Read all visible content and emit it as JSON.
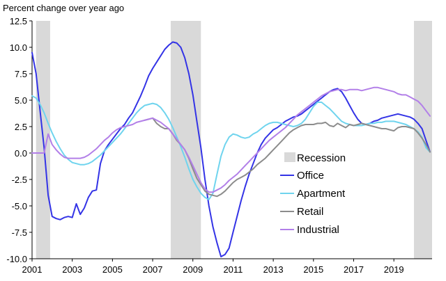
{
  "chart_data": {
    "type": "line",
    "ylabel": "Percent change over year ago",
    "ylim": [
      -10.0,
      12.5
    ],
    "yticks": [
      "12.5",
      "10.0",
      "7.5",
      "5.0",
      "2.5",
      "0.0",
      "-2.5",
      "-5.0",
      "-7.5",
      "-10.0"
    ],
    "xlim": [
      2001,
      2020.9
    ],
    "xticks": [
      "2001",
      "2003",
      "2005",
      "2007",
      "2009",
      "2011",
      "2013",
      "2015",
      "2017",
      "2019"
    ],
    "grid": false,
    "legend_position": "right",
    "recessions": [
      [
        2001.2,
        2001.9
      ],
      [
        2007.9,
        2009.4
      ],
      [
        2020.0,
        2020.9
      ]
    ],
    "recession_label": "Recession",
    "recession_color": "#d9d9d9",
    "series": [
      {
        "name": "Office",
        "color": "#3333e6",
        "x": [
          2001.0,
          2001.2,
          2001.4,
          2001.6,
          2001.8,
          2002.0,
          2002.2,
          2002.4,
          2002.6,
          2002.8,
          2003.0,
          2003.2,
          2003.4,
          2003.6,
          2003.8,
          2004.0,
          2004.2,
          2004.4,
          2004.6,
          2004.8,
          2005.0,
          2005.2,
          2005.4,
          2005.6,
          2005.8,
          2006.0,
          2006.2,
          2006.4,
          2006.6,
          2006.8,
          2007.0,
          2007.2,
          2007.4,
          2007.6,
          2007.8,
          2008.0,
          2008.2,
          2008.4,
          2008.6,
          2008.8,
          2009.0,
          2009.2,
          2009.4,
          2009.6,
          2009.8,
          2010.0,
          2010.2,
          2010.4,
          2010.6,
          2010.8,
          2011.0,
          2011.2,
          2011.4,
          2011.6,
          2011.8,
          2012.0,
          2012.2,
          2012.4,
          2012.6,
          2012.8,
          2013.0,
          2013.2,
          2013.4,
          2013.6,
          2013.8,
          2014.0,
          2014.2,
          2014.4,
          2014.6,
          2014.8,
          2015.0,
          2015.2,
          2015.4,
          2015.6,
          2015.8,
          2016.0,
          2016.2,
          2016.4,
          2016.6,
          2016.8,
          2017.0,
          2017.2,
          2017.4,
          2017.6,
          2017.8,
          2018.0,
          2018.2,
          2018.4,
          2018.6,
          2018.8,
          2019.0,
          2019.2,
          2019.4,
          2019.6,
          2019.8,
          2020.0,
          2020.2,
          2020.4,
          2020.6,
          2020.8
        ],
        "y": [
          9.5,
          7.5,
          4.0,
          0.5,
          -4.0,
          -6.0,
          -6.2,
          -6.3,
          -6.1,
          -6.0,
          -6.1,
          -4.8,
          -5.8,
          -5.2,
          -4.2,
          -3.6,
          -3.5,
          -1.0,
          0.2,
          0.8,
          1.3,
          1.8,
          2.3,
          2.7,
          3.3,
          3.8,
          4.6,
          5.4,
          6.3,
          7.3,
          8.0,
          8.6,
          9.2,
          9.8,
          10.2,
          10.5,
          10.4,
          10.0,
          9.0,
          7.5,
          5.5,
          3.0,
          0.5,
          -2.5,
          -5.0,
          -7.0,
          -8.5,
          -9.8,
          -9.6,
          -9.0,
          -7.5,
          -6.0,
          -4.5,
          -3.2,
          -2.0,
          -1.0,
          0.0,
          0.8,
          1.4,
          1.8,
          2.2,
          2.4,
          2.7,
          3.0,
          3.2,
          3.4,
          3.5,
          3.7,
          4.0,
          4.3,
          4.6,
          4.9,
          5.2,
          5.5,
          5.8,
          6.0,
          6.1,
          5.8,
          5.2,
          4.5,
          3.8,
          3.2,
          2.8,
          2.7,
          2.8,
          3.0,
          3.1,
          3.3,
          3.4,
          3.5,
          3.6,
          3.7,
          3.6,
          3.5,
          3.4,
          3.2,
          2.8,
          2.3,
          1.2,
          0.1
        ]
      },
      {
        "name": "Apartment",
        "color": "#6fd4ee",
        "x": [
          2001.0,
          2001.2,
          2001.4,
          2001.6,
          2001.8,
          2002.0,
          2002.2,
          2002.4,
          2002.6,
          2002.8,
          2003.0,
          2003.2,
          2003.4,
          2003.6,
          2003.8,
          2004.0,
          2004.2,
          2004.4,
          2004.6,
          2004.8,
          2005.0,
          2005.2,
          2005.4,
          2005.6,
          2005.8,
          2006.0,
          2006.2,
          2006.4,
          2006.6,
          2006.8,
          2007.0,
          2007.2,
          2007.4,
          2007.6,
          2007.8,
          2008.0,
          2008.2,
          2008.4,
          2008.6,
          2008.8,
          2009.0,
          2009.2,
          2009.4,
          2009.6,
          2009.8,
          2010.0,
          2010.2,
          2010.4,
          2010.6,
          2010.8,
          2011.0,
          2011.2,
          2011.4,
          2011.6,
          2011.8,
          2012.0,
          2012.2,
          2012.4,
          2012.6,
          2012.8,
          2013.0,
          2013.2,
          2013.4,
          2013.6,
          2013.8,
          2014.0,
          2014.2,
          2014.4,
          2014.6,
          2014.8,
          2015.0,
          2015.2,
          2015.4,
          2015.6,
          2015.8,
          2016.0,
          2016.2,
          2016.4,
          2016.6,
          2016.8,
          2017.0,
          2017.2,
          2017.4,
          2017.6,
          2017.8,
          2018.0,
          2018.2,
          2018.4,
          2018.6,
          2018.8,
          2019.0,
          2019.2,
          2019.4,
          2019.6,
          2019.8,
          2020.0,
          2020.2,
          2020.4,
          2020.6,
          2020.8
        ],
        "y": [
          5.4,
          5.2,
          4.6,
          3.8,
          2.8,
          1.9,
          1.1,
          0.4,
          -0.2,
          -0.6,
          -0.9,
          -1.0,
          -1.1,
          -1.1,
          -1.0,
          -0.8,
          -0.5,
          -0.2,
          0.2,
          0.6,
          1.0,
          1.4,
          1.8,
          2.3,
          2.8,
          3.3,
          3.8,
          4.2,
          4.5,
          4.6,
          4.7,
          4.6,
          4.3,
          3.8,
          3.2,
          2.4,
          1.5,
          0.6,
          -0.4,
          -1.5,
          -2.5,
          -3.2,
          -3.8,
          -4.2,
          -4.4,
          -3.8,
          -2.0,
          -0.3,
          0.8,
          1.5,
          1.8,
          1.7,
          1.5,
          1.4,
          1.5,
          1.8,
          2.0,
          2.3,
          2.6,
          2.8,
          2.9,
          2.9,
          2.8,
          2.7,
          2.6,
          2.5,
          2.6,
          2.8,
          3.2,
          3.8,
          4.4,
          4.8,
          4.8,
          4.5,
          4.2,
          3.8,
          3.4,
          3.0,
          2.8,
          2.7,
          2.6,
          2.6,
          2.6,
          2.7,
          2.8,
          2.8,
          2.9,
          2.9,
          3.0,
          3.0,
          3.0,
          2.9,
          2.8,
          2.7,
          2.5,
          2.3,
          2.0,
          1.5,
          0.5,
          0.1
        ]
      },
      {
        "name": "Retail",
        "color": "#8c8c8c",
        "x": [
          2006.6,
          2006.8,
          2007.0,
          2007.2,
          2007.4,
          2007.6,
          2007.8,
          2008.0,
          2008.2,
          2008.4,
          2008.6,
          2008.8,
          2009.0,
          2009.2,
          2009.4,
          2009.6,
          2009.8,
          2010.0,
          2010.2,
          2010.4,
          2010.6,
          2010.8,
          2011.0,
          2011.2,
          2011.4,
          2011.6,
          2011.8,
          2012.0,
          2012.2,
          2012.4,
          2012.6,
          2012.8,
          2013.0,
          2013.2,
          2013.4,
          2013.6,
          2013.8,
          2014.0,
          2014.2,
          2014.4,
          2014.6,
          2014.8,
          2015.0,
          2015.2,
          2015.4,
          2015.6,
          2015.8,
          2016.0,
          2016.2,
          2016.4,
          2016.6,
          2016.8,
          2017.0,
          2017.2,
          2017.4,
          2017.6,
          2017.8,
          2018.0,
          2018.2,
          2018.4,
          2018.6,
          2018.8,
          2019.0,
          2019.2,
          2019.4,
          2019.6,
          2019.8,
          2020.0,
          2020.2,
          2020.4,
          2020.6,
          2020.8
        ],
        "y": [
          3.1,
          3.2,
          3.3,
          2.8,
          2.5,
          2.3,
          2.3,
          1.8,
          1.2,
          0.8,
          0.3,
          -0.5,
          -1.5,
          -2.4,
          -3.0,
          -3.6,
          -3.9,
          -4.0,
          -4.1,
          -3.9,
          -3.6,
          -3.2,
          -2.8,
          -2.5,
          -2.3,
          -2.1,
          -1.8,
          -1.5,
          -1.1,
          -0.8,
          -0.5,
          -0.1,
          0.3,
          0.7,
          1.1,
          1.5,
          1.9,
          2.2,
          2.4,
          2.6,
          2.7,
          2.7,
          2.7,
          2.8,
          2.8,
          2.9,
          2.6,
          2.5,
          2.8,
          2.6,
          2.4,
          2.7,
          2.6,
          2.7,
          2.8,
          2.7,
          2.6,
          2.5,
          2.4,
          2.3,
          2.3,
          2.2,
          2.1,
          2.4,
          2.5,
          2.5,
          2.4,
          2.3,
          1.9,
          1.4,
          0.8,
          0.1
        ]
      },
      {
        "name": "Industrial",
        "color": "#b27fe8",
        "x": [
          2001.0,
          2001.2,
          2001.4,
          2001.6,
          2001.8,
          2002.0,
          2002.2,
          2002.4,
          2002.6,
          2002.8,
          2003.0,
          2003.2,
          2003.4,
          2003.6,
          2003.8,
          2004.0,
          2004.2,
          2004.4,
          2004.6,
          2004.8,
          2005.0,
          2005.2,
          2005.4,
          2005.6,
          2005.8,
          2006.0,
          2006.2,
          2006.4,
          2006.6,
          2006.8,
          2007.0,
          2007.2,
          2007.4,
          2007.6,
          2007.8,
          2008.0,
          2008.2,
          2008.4,
          2008.6,
          2008.8,
          2009.0,
          2009.2,
          2009.4,
          2009.6,
          2009.8,
          2010.0,
          2010.2,
          2010.4,
          2010.6,
          2010.8,
          2011.0,
          2011.2,
          2011.4,
          2011.6,
          2011.8,
          2012.0,
          2012.2,
          2012.4,
          2012.6,
          2012.8,
          2013.0,
          2013.2,
          2013.4,
          2013.6,
          2013.8,
          2014.0,
          2014.2,
          2014.4,
          2014.6,
          2014.8,
          2015.0,
          2015.2,
          2015.4,
          2015.6,
          2015.8,
          2016.0,
          2016.2,
          2016.4,
          2016.6,
          2016.8,
          2017.0,
          2017.2,
          2017.4,
          2017.6,
          2017.8,
          2018.0,
          2018.2,
          2018.4,
          2018.6,
          2018.8,
          2019.0,
          2019.2,
          2019.4,
          2019.6,
          2019.8,
          2020.0,
          2020.2,
          2020.4,
          2020.6,
          2020.8
        ],
        "y": [
          0.0,
          0.0,
          0.0,
          0.0,
          1.8,
          0.8,
          0.3,
          -0.1,
          -0.4,
          -0.5,
          -0.5,
          -0.5,
          -0.5,
          -0.4,
          -0.2,
          0.1,
          0.4,
          0.8,
          1.2,
          1.5,
          1.9,
          2.2,
          2.4,
          2.5,
          2.6,
          2.7,
          2.9,
          3.0,
          3.1,
          3.2,
          3.3,
          3.1,
          2.9,
          2.6,
          2.3,
          1.8,
          1.3,
          0.8,
          0.3,
          -0.4,
          -1.2,
          -2.0,
          -2.8,
          -3.4,
          -3.7,
          -3.7,
          -3.5,
          -3.3,
          -3.0,
          -2.6,
          -2.3,
          -2.0,
          -1.6,
          -1.2,
          -0.8,
          -0.4,
          0.0,
          0.4,
          0.8,
          1.2,
          1.5,
          1.8,
          2.1,
          2.4,
          2.8,
          3.2,
          3.6,
          3.9,
          4.2,
          4.5,
          4.8,
          5.1,
          5.4,
          5.6,
          5.8,
          5.9,
          6.0,
          6.0,
          5.9,
          6.0,
          6.0,
          6.0,
          5.9,
          6.0,
          6.1,
          6.2,
          6.2,
          6.1,
          6.0,
          5.9,
          5.8,
          5.6,
          5.5,
          5.5,
          5.3,
          5.1,
          4.9,
          4.5,
          4.0,
          3.5
        ]
      }
    ]
  }
}
